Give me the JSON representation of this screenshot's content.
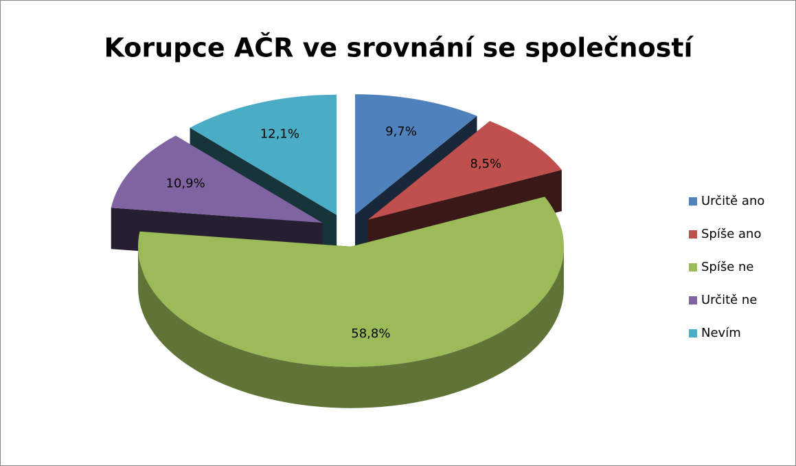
{
  "chart_data": {
    "type": "pie",
    "title": "Korupce AČR ve srovnání se společností",
    "categories": [
      "Určitě ano",
      "Spíše ano",
      "Spíše ne",
      "Určitě ne",
      "Nevím"
    ],
    "values": [
      9.7,
      8.5,
      58.8,
      10.9,
      12.1
    ],
    "value_labels": [
      "9,7%",
      "8,5%",
      "58,8%",
      "10,9%",
      "12,1%"
    ],
    "colors": [
      "#4f81bd",
      "#c0504d",
      "#9bbb59",
      "#8064a2",
      "#4bacc6"
    ],
    "legend": "right",
    "exploded": true,
    "3d": true
  }
}
